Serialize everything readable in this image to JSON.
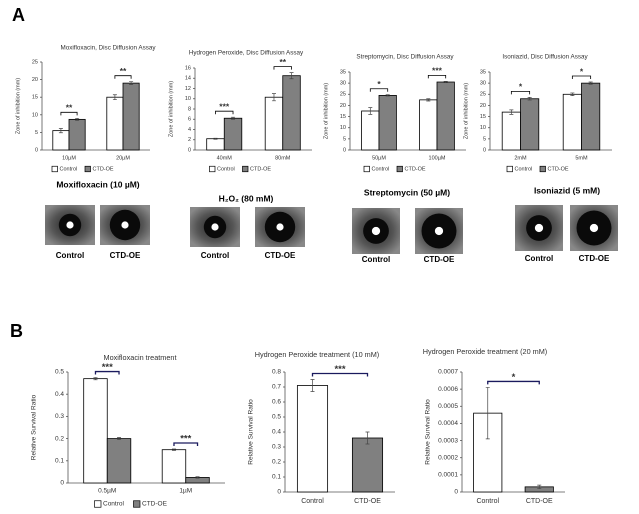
{
  "panels": [
    {
      "label": "A"
    },
    {
      "label": "B"
    }
  ],
  "chart_data": [
    {
      "type": "bar",
      "title": "Moxifloxacin, Disc Diffusion Assay",
      "y_label": "Zone of inhibition (mm)",
      "categories": [
        "10µM",
        "20µM"
      ],
      "ylim": [
        0,
        25
      ],
      "yticks": [
        0,
        5,
        10,
        15,
        20,
        25
      ],
      "legend": true,
      "series": [
        {
          "name": "Control",
          "color": "#ffffff",
          "values": [
            5.5,
            15
          ],
          "errors": [
            0.6,
            0.7
          ]
        },
        {
          "name": "CTD-OE",
          "color": "#808080",
          "values": [
            8.7,
            19
          ],
          "errors": [
            0.3,
            0.4
          ]
        }
      ],
      "annotations": [
        "**",
        "**"
      ]
    },
    {
      "type": "bar",
      "title": "Hydrogen Peroxide, Disc Diffusion Assay",
      "y_label": "Zone of inhibition (mm)",
      "categories": [
        "40mM",
        "80mM"
      ],
      "ylim": [
        0,
        16
      ],
      "yticks": [
        0,
        2,
        4,
        6,
        8,
        10,
        12,
        14,
        16
      ],
      "legend": true,
      "series": [
        {
          "name": "Control",
          "color": "#ffffff",
          "values": [
            2.2,
            10.3
          ],
          "errors": [
            0.1,
            0.7
          ]
        },
        {
          "name": "CTD-OE",
          "color": "#808080",
          "values": [
            6.2,
            14.5
          ],
          "errors": [
            0.2,
            0.6
          ]
        }
      ],
      "annotations": [
        "***",
        "**"
      ]
    },
    {
      "type": "bar",
      "title": "Streptomycin, Disc Diffusion Assay",
      "y_label": "Zone of inhibition (mm)",
      "categories": [
        "50µM",
        "100µM"
      ],
      "ylim": [
        0,
        35
      ],
      "yticks": [
        0,
        5,
        10,
        15,
        20,
        25,
        30,
        35
      ],
      "legend": true,
      "series": [
        {
          "name": "Control",
          "color": "#ffffff",
          "values": [
            17.5,
            22.5
          ],
          "errors": [
            1.5,
            0.5
          ]
        },
        {
          "name": "CTD-OE",
          "color": "#808080",
          "values": [
            24.5,
            30.5
          ],
          "errors": [
            0.3,
            0.3
          ]
        }
      ],
      "annotations": [
        "*",
        "***"
      ]
    },
    {
      "type": "bar",
      "title": "Isoniazid, Disc Diffusion Assay",
      "y_label": "Zone of inhibition (mm)",
      "categories": [
        "2mM",
        "5mM"
      ],
      "ylim": [
        0,
        35
      ],
      "yticks": [
        0,
        5,
        10,
        15,
        20,
        25,
        30,
        35
      ],
      "legend": true,
      "series": [
        {
          "name": "Control",
          "color": "#ffffff",
          "values": [
            17,
            25
          ],
          "errors": [
            1,
            0.6
          ]
        },
        {
          "name": "CTD-OE",
          "color": "#808080",
          "values": [
            23,
            30
          ],
          "errors": [
            0.6,
            0.5
          ]
        }
      ],
      "annotations": [
        "*",
        "*"
      ]
    },
    {
      "type": "bar",
      "title": "Moxifloxacin treatment",
      "y_label": "Relative Survival Ratio",
      "categories": [
        "0.5µM",
        "1µM"
      ],
      "ylim": [
        0,
        0.5
      ],
      "yticks": [
        0,
        0.1,
        0.2,
        0.3,
        0.4,
        0.5
      ],
      "legend": true,
      "series": [
        {
          "name": "Control",
          "color": "#ffffff",
          "values": [
            0.47,
            0.15
          ],
          "errors": [
            0.005,
            0.003
          ]
        },
        {
          "name": "CTD-OE",
          "color": "#808080",
          "values": [
            0.2,
            0.025
          ],
          "errors": [
            0.005,
            0.003
          ]
        }
      ],
      "annotations": [
        "***",
        "***"
      ]
    },
    {
      "type": "bar",
      "title": "Hydrogen Peroxide treatment (10 mM)",
      "y_label": "Relative Survival Ratio",
      "categories": [
        "Control",
        "CTD-OE"
      ],
      "values": [
        0.71,
        0.36
      ],
      "errors": [
        0.04,
        0.04
      ],
      "colors": [
        "#ffffff",
        "#808080"
      ],
      "ylim": [
        0,
        0.8
      ],
      "yticks": [
        0,
        0.1,
        0.2,
        0.3,
        0.4,
        0.5,
        0.6,
        0.7,
        0.8
      ],
      "annotations": [
        "***"
      ]
    },
    {
      "type": "bar",
      "title": "Hydrogen Peroxide treatment (20 mM)",
      "y_label": "Relative Survival Ratio",
      "categories": [
        "Control",
        "CTD-OE"
      ],
      "values": [
        0.00046,
        3e-05
      ],
      "errors": [
        0.00015,
        1e-05
      ],
      "colors": [
        "#ffffff",
        "#808080"
      ],
      "ylim": [
        0,
        0.0007
      ],
      "yticks": [
        0,
        0.0001,
        0.0002,
        0.0003,
        0.0004,
        0.0005,
        0.0006,
        0.0007
      ],
      "annotations": [
        "*"
      ]
    }
  ],
  "images": [
    {
      "title": "Moxifloxacin (10 µM)",
      "captions": [
        "Control",
        "CTD-OE"
      ]
    },
    {
      "title": "H₂O₂ (80 mM)",
      "captions": [
        "Control",
        "CTD-OE"
      ]
    },
    {
      "title": "Streptomycin (50 µM)",
      "captions": [
        "Control",
        "CTD-OE"
      ]
    },
    {
      "title": "Isoniazid (5 mM)",
      "captions": [
        "Control",
        "CTD-OE"
      ]
    }
  ]
}
